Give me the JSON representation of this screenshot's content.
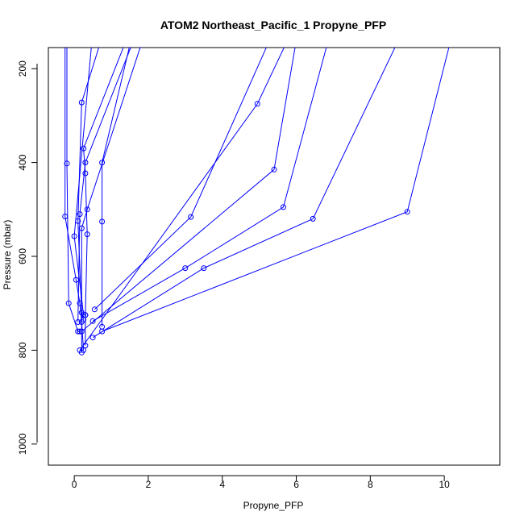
{
  "chart_data": {
    "type": "line",
    "title": "ATOM2 Northeast_Pacific_1 Propyne_PFP",
    "xlabel": "Propyne_PFP",
    "ylabel": "Pressure (mbar)",
    "xlim": [
      -0.7,
      11.5
    ],
    "ylim": [
      1045,
      155
    ],
    "y_inverted": true,
    "x_ticks": [
      0,
      2,
      4,
      6,
      8,
      10
    ],
    "y_ticks": [
      200,
      400,
      600,
      800,
      1000
    ],
    "grid": false,
    "legend": "none",
    "color": "#0000ff",
    "series": [
      {
        "x": [
          -0.25,
          -0.25,
          0.05,
          0.15,
          0.2,
          0.25
        ],
        "y": [
          100,
          515,
          650,
          700,
          740,
          800
        ]
      },
      {
        "x": [
          -0.2,
          -0.2,
          -0.15,
          0.1,
          0.15
        ],
        "y": [
          120,
          402,
          700,
          760,
          760
        ]
      },
      {
        "x": [
          0.5,
          0.0,
          0.25,
          0.3,
          0.3
        ],
        "y": [
          120,
          557,
          725,
          725,
          790
        ]
      },
      {
        "x": [
          0.8,
          0.2,
          0.1,
          0.2,
          0.25
        ],
        "y": [
          120,
          272,
          525,
          720,
          735
        ]
      },
      {
        "x": [
          1.5,
          0.25,
          0.3,
          0.35,
          0.3
        ],
        "y": [
          120,
          370,
          423,
          553,
          725
        ]
      },
      {
        "x": [
          1.7,
          0.3,
          0.15,
          0.1
        ],
        "y": [
          120,
          400,
          510,
          740
        ]
      },
      {
        "x": [
          1.5,
          0.75,
          0.75,
          0.75
        ],
        "y": [
          150,
          400,
          526,
          750
        ]
      },
      {
        "x": [
          1.8,
          0.35,
          0.2,
          0.2
        ],
        "y": [
          150,
          500,
          540,
          805
        ]
      },
      {
        "x": [
          5.5,
          3.15,
          0.55
        ],
        "y": [
          100,
          516,
          713
        ]
      },
      {
        "x": [
          6.0,
          5.4,
          0.2
        ],
        "y": [
          140,
          415,
          760
        ]
      },
      {
        "x": [
          6.0,
          4.95,
          0.15
        ],
        "y": [
          100,
          275,
          800
        ]
      },
      {
        "x": [
          7.0,
          5.65,
          3.0,
          0.5
        ],
        "y": [
          100,
          495,
          625,
          738
        ]
      },
      {
        "x": [
          9.0,
          6.45,
          3.5,
          0.5
        ],
        "y": [
          100,
          520,
          625,
          773
        ]
      },
      {
        "x": [
          10.3,
          9.0,
          0.75
        ],
        "y": [
          100,
          505,
          760
        ]
      }
    ]
  }
}
